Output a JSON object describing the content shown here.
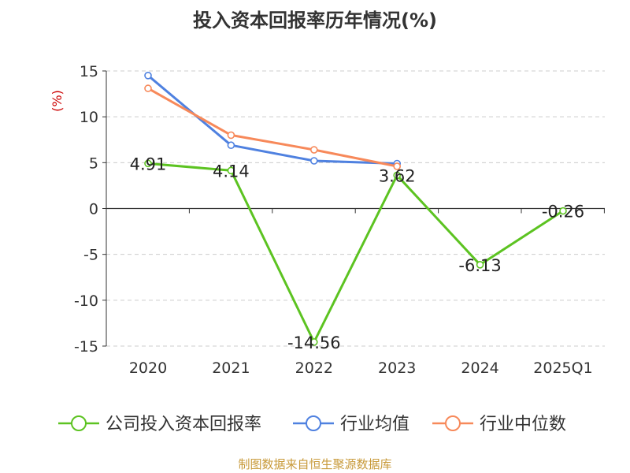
{
  "chart_data": {
    "type": "line",
    "title": "投入资本回报率历年情况(%)",
    "ylabel": "(%)",
    "categories": [
      "2020",
      "2021",
      "2022",
      "2023",
      "2024",
      "2025Q1"
    ],
    "ylim": [
      -15,
      15
    ],
    "yticks": [
      "15",
      "10",
      "5",
      "0",
      "-5",
      "-10",
      "-15"
    ],
    "ytick_values": [
      15,
      10,
      5,
      0,
      -5,
      -10,
      -15
    ],
    "grid": true,
    "legend_position": "bottom",
    "series": [
      {
        "name": "公司投入资本回报率",
        "color": "#5cc321",
        "values": [
          4.91,
          4.14,
          -14.56,
          3.62,
          -6.13,
          -0.26
        ],
        "labels": [
          "4.91",
          "4.14",
          "-14.56",
          "3.62",
          "-6.13",
          "-0.26"
        ]
      },
      {
        "name": "行业均值",
        "color": "#4f81e0",
        "values": [
          14.5,
          6.9,
          5.2,
          4.9,
          null,
          null
        ]
      },
      {
        "name": "行业中位数",
        "color": "#f7895a",
        "values": [
          13.1,
          8.0,
          6.4,
          4.6,
          null,
          null
        ]
      }
    ]
  },
  "footer": {
    "source": "制图数据来自恒生聚源数据库",
    "color": "#c89a3a"
  },
  "axis_colors": {
    "ylabel": "#cc0000",
    "axis": "#333333",
    "grid": "#cccccc"
  }
}
